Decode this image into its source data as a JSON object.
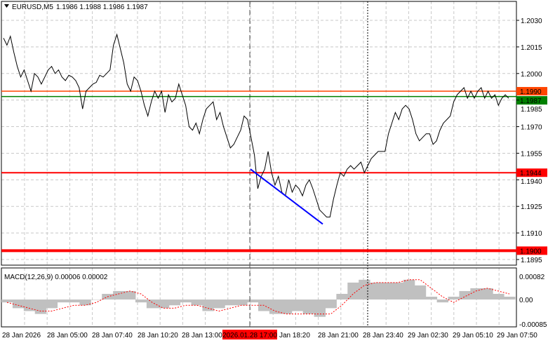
{
  "header": {
    "symbol": "EURUSD,M5",
    "ohlc": "1.1986 1.1988 1.1986 1.1987",
    "menu_icon": "triangle-down-icon"
  },
  "price_axis": [
    "1.2030",
    "1.2015",
    "1.2000",
    "1.1985",
    "1.1970",
    "1.1955",
    "1.1940",
    "1.1925",
    "1.1910",
    "1.1895"
  ],
  "price_axis_values": [
    1.203,
    1.2015,
    1.2,
    1.1985,
    1.197,
    1.1955,
    1.194,
    1.1925,
    1.191,
    1.1895
  ],
  "levels": [
    {
      "label": "1.1990",
      "value": 1.199,
      "color": "#ff4500"
    },
    {
      "label": "1.1987",
      "value": 1.1987,
      "color": "#008000"
    },
    {
      "label": "1.1944",
      "value": 1.1944,
      "color": "#ff0000"
    },
    {
      "label": "1.1900",
      "value": 1.19,
      "color": "#ff0000"
    }
  ],
  "macd": {
    "label": "MACD(12,26,9) 0.00006 0.00002",
    "axis": [
      "0.00082",
      "0.00",
      "-0.00085"
    ],
    "axis_values": [
      0.00082,
      0,
      -0.00085
    ],
    "bar_color": "#c0c0c0",
    "signal_color": "#ff0000"
  },
  "time_axis": [
    "28 Jan 2026",
    "28 Jan 05:00",
    "28 Jan 07:40",
    "28 Jan 10:20",
    "28 Jan 13:00",
    "2026.01.28 17:00",
    "Jan 18:20",
    "28 Jan 21:00",
    "28 Jan 23:40",
    "29 Jan 02:30",
    "29 Jan 05:10",
    "29 Jan 07:50"
  ],
  "chart_data": {
    "type": "line",
    "ylim": [
      1.1888,
      1.204
    ],
    "close": [
      1.202,
      1.2016,
      1.2021,
      1.2012,
      1.2004,
      1.1998,
      1.2002,
      1.1996,
      1.199,
      1.2,
      1.1998,
      1.1994,
      1.1998,
      1.2002,
      1.2004,
      1.2,
      1.2002,
      1.1998,
      1.1996,
      1.1999,
      1.1998,
      1.1996,
      1.1992,
      1.198,
      1.199,
      1.1992,
      1.1994,
      1.1995,
      1.1999,
      1.1998,
      1.2,
      1.2002,
      1.2016,
      1.2022,
      1.2014,
      1.2006,
      1.1994,
      1.199,
      1.1998,
      1.1996,
      1.199,
      1.1982,
      1.1976,
      1.1984,
      1.199,
      1.1986,
      1.199,
      1.1978,
      1.1988,
      1.1984,
      1.1986,
      1.1994,
      1.1988,
      1.1982,
      1.197,
      1.1968,
      1.1972,
      1.1966,
      1.1974,
      1.198,
      1.1982,
      1.1984,
      1.1974,
      1.1978,
      1.197,
      1.1964,
      1.1958,
      1.196,
      1.1964,
      1.1968,
      1.1976,
      1.1974,
      1.1964,
      1.1954,
      1.1935,
      1.1942,
      1.1946,
      1.1956,
      1.1944,
      1.1937,
      1.1942,
      1.1933,
      1.1931,
      1.194,
      1.1933,
      1.1937,
      1.1935,
      1.1931,
      1.1937,
      1.194,
      1.1935,
      1.1929,
      1.1923,
      1.1921,
      1.1919,
      1.1919,
      1.1929,
      1.1937,
      1.1944,
      1.1942,
      1.1946,
      1.1948,
      1.1946,
      1.1948,
      1.195,
      1.1944,
      1.1948,
      1.1952,
      1.1954,
      1.1956,
      1.1956,
      1.1956,
      1.1966,
      1.1972,
      1.1978,
      1.1974,
      1.198,
      1.1982,
      1.198,
      1.1974,
      1.1966,
      1.1962,
      1.1964,
      1.1966,
      1.1966,
      1.196,
      1.1962,
      1.1968,
      1.1972,
      1.1974,
      1.1976,
      1.1984,
      1.1988,
      1.199,
      1.1992,
      1.1986,
      1.199,
      1.1986,
      1.199,
      1.1992,
      1.1986,
      1.199,
      1.1986,
      1.1988,
      1.1982,
      1.1986,
      1.1988,
      1.1986
    ],
    "trendline": {
      "from": 1.1946,
      "to": 1.1915,
      "color": "#0000ff"
    },
    "macd_hist": [
      -0.0001,
      -0.0003,
      -0.0004,
      -0.0005,
      -0.0003,
      -0.0001,
      -0.0001,
      -0.0002,
      0.0,
      0.0002,
      0.0003,
      0.0003,
      -0.0001,
      -0.0003,
      -0.0003,
      -0.0002,
      -0.0001,
      -0.0002,
      -0.0004,
      -0.0003,
      -0.0002,
      -0.0002,
      -0.0001,
      -0.0004,
      -0.0005,
      -0.0005,
      -0.0004,
      -0.0005,
      -0.0006,
      -0.0003,
      0.0002,
      0.0006,
      0.0007,
      0.0006,
      0.0006,
      0.0006,
      0.0007,
      0.0005,
      0.0001,
      -0.0001,
      0.0001,
      0.0003,
      0.0004,
      0.0004,
      0.0002,
      0.0001
    ],
    "macd_signal": [
      -0.0001,
      -0.0002,
      -0.0003,
      -0.0004,
      -0.0004,
      -0.0003,
      -0.0002,
      -0.0002,
      -0.0001,
      0.0001,
      0.0002,
      0.0003,
      0.0002,
      -0.0001,
      -0.0003,
      -0.0003,
      -0.0002,
      -0.0002,
      -0.0003,
      -0.0004,
      -0.0003,
      -0.0002,
      -0.0002,
      -0.0002,
      -0.0004,
      -0.0005,
      -0.0005,
      -0.0005,
      -0.0005,
      -0.0005,
      -0.0002,
      0.0002,
      0.0005,
      0.0006,
      0.0006,
      0.0006,
      0.0007,
      0.0007,
      0.0004,
      0.0001,
      -0.0001,
      0.0001,
      0.0003,
      0.0004,
      0.0003,
      0.0002
    ],
    "macd_ylim": [
      -0.00085,
      0.00082
    ],
    "grid": true
  }
}
